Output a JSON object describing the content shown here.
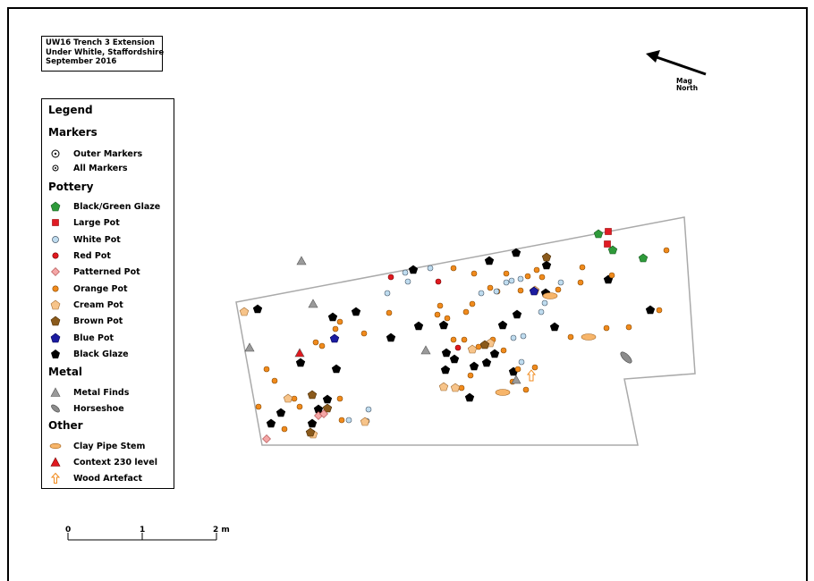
{
  "title": {
    "lines": [
      "UW16 Trench 3 Extension",
      "Under Whitle, Staffordshire",
      "September 2016"
    ]
  },
  "north": {
    "label_line1": "Mag",
    "label_line2": "North"
  },
  "scale": {
    "labels": [
      "0",
      "1",
      "2 m"
    ]
  },
  "colors": {
    "black_green_glaze": "#2e9a3a",
    "large_pot": "#e01b24",
    "white_pot": "#bfdcef",
    "red_pot": "#e0191f",
    "patterned_pot": "#f4a6a6",
    "orange_pot": "#f08a1c",
    "cream_pot": "#f7c48a",
    "brown_pot": "#8a5a1c",
    "blue_pot": "#1c1ca0",
    "black_glaze": "#000000",
    "metal_finds": "#9a9a9a",
    "horseshoe": "#8c8c8c",
    "clay_pipe": "#f7b56a",
    "context_230": "#e0191f",
    "wood_artefact": "#f08a1c"
  },
  "legend": {
    "title": "Legend",
    "groups": [
      {
        "heading": "Markers",
        "items": [
          {
            "label": "Outer Markers",
            "icon": "outer-marker-icon"
          },
          {
            "label": "All Markers",
            "icon": "all-marker-icon"
          }
        ]
      },
      {
        "heading": "Pottery",
        "items": [
          {
            "label": "Black/Green Glaze",
            "icon": "green-pentagon-icon"
          },
          {
            "label": "Large Pot",
            "icon": "red-square-icon"
          },
          {
            "label": "White Pot",
            "icon": "white-circle-icon"
          },
          {
            "label": "Red Pot",
            "icon": "red-circle-icon"
          },
          {
            "label": "Patterned Pot",
            "icon": "pink-diamond-icon"
          },
          {
            "label": "Orange Pot",
            "icon": "orange-circle-icon"
          },
          {
            "label": "Cream Pot",
            "icon": "cream-pentagon-icon"
          },
          {
            "label": "Brown Pot",
            "icon": "brown-pentagon-icon"
          },
          {
            "label": "Blue Pot",
            "icon": "blue-pentagon-icon"
          },
          {
            "label": "Black Glaze",
            "icon": "black-pentagon-icon"
          }
        ]
      },
      {
        "heading": "Metal",
        "items": [
          {
            "label": "Metal Finds",
            "icon": "grey-triangle-icon"
          },
          {
            "label": "Horseshoe",
            "icon": "grey-ellipse-icon"
          }
        ]
      },
      {
        "heading": "Other",
        "items": [
          {
            "label": "Clay Pipe Stem",
            "icon": "orange-ellipse-icon"
          },
          {
            "label": "Context 230 level",
            "icon": "red-triangle-icon"
          },
          {
            "label": "Wood Artefact",
            "icon": "up-arrow-icon"
          }
        ]
      }
    ]
  }
}
